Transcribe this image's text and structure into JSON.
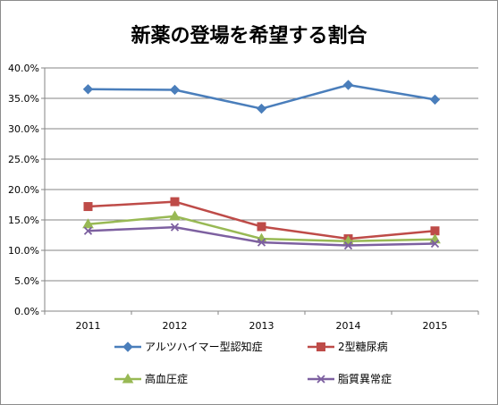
{
  "chart_data": {
    "type": "line",
    "title": "新薬の登場を希望する割合",
    "x": [
      "2011",
      "2012",
      "2013",
      "2014",
      "2015"
    ],
    "ylim": [
      0,
      40
    ],
    "yticks": [
      "0.0%",
      "5.0%",
      "10.0%",
      "15.0%",
      "20.0%",
      "25.0%",
      "30.0%",
      "35.0%",
      "40.0%"
    ],
    "grid": true,
    "legend": "bottom",
    "series": [
      {
        "name": "アルツハイマー型認知症",
        "values": [
          36.5,
          36.4,
          33.3,
          37.2,
          34.8
        ],
        "color": "#4a7ebb",
        "marker": "diamond"
      },
      {
        "name": "2型糖尿病",
        "values": [
          17.2,
          18.0,
          13.9,
          11.9,
          13.2
        ],
        "color": "#be4b48",
        "marker": "square"
      },
      {
        "name": "高血圧症",
        "values": [
          14.3,
          15.6,
          11.9,
          11.5,
          11.8
        ],
        "color": "#98b954",
        "marker": "triangle"
      },
      {
        "name": "脂質異常症",
        "values": [
          13.2,
          13.8,
          11.3,
          10.8,
          11.1
        ],
        "color": "#7d60a0",
        "marker": "x"
      }
    ]
  }
}
